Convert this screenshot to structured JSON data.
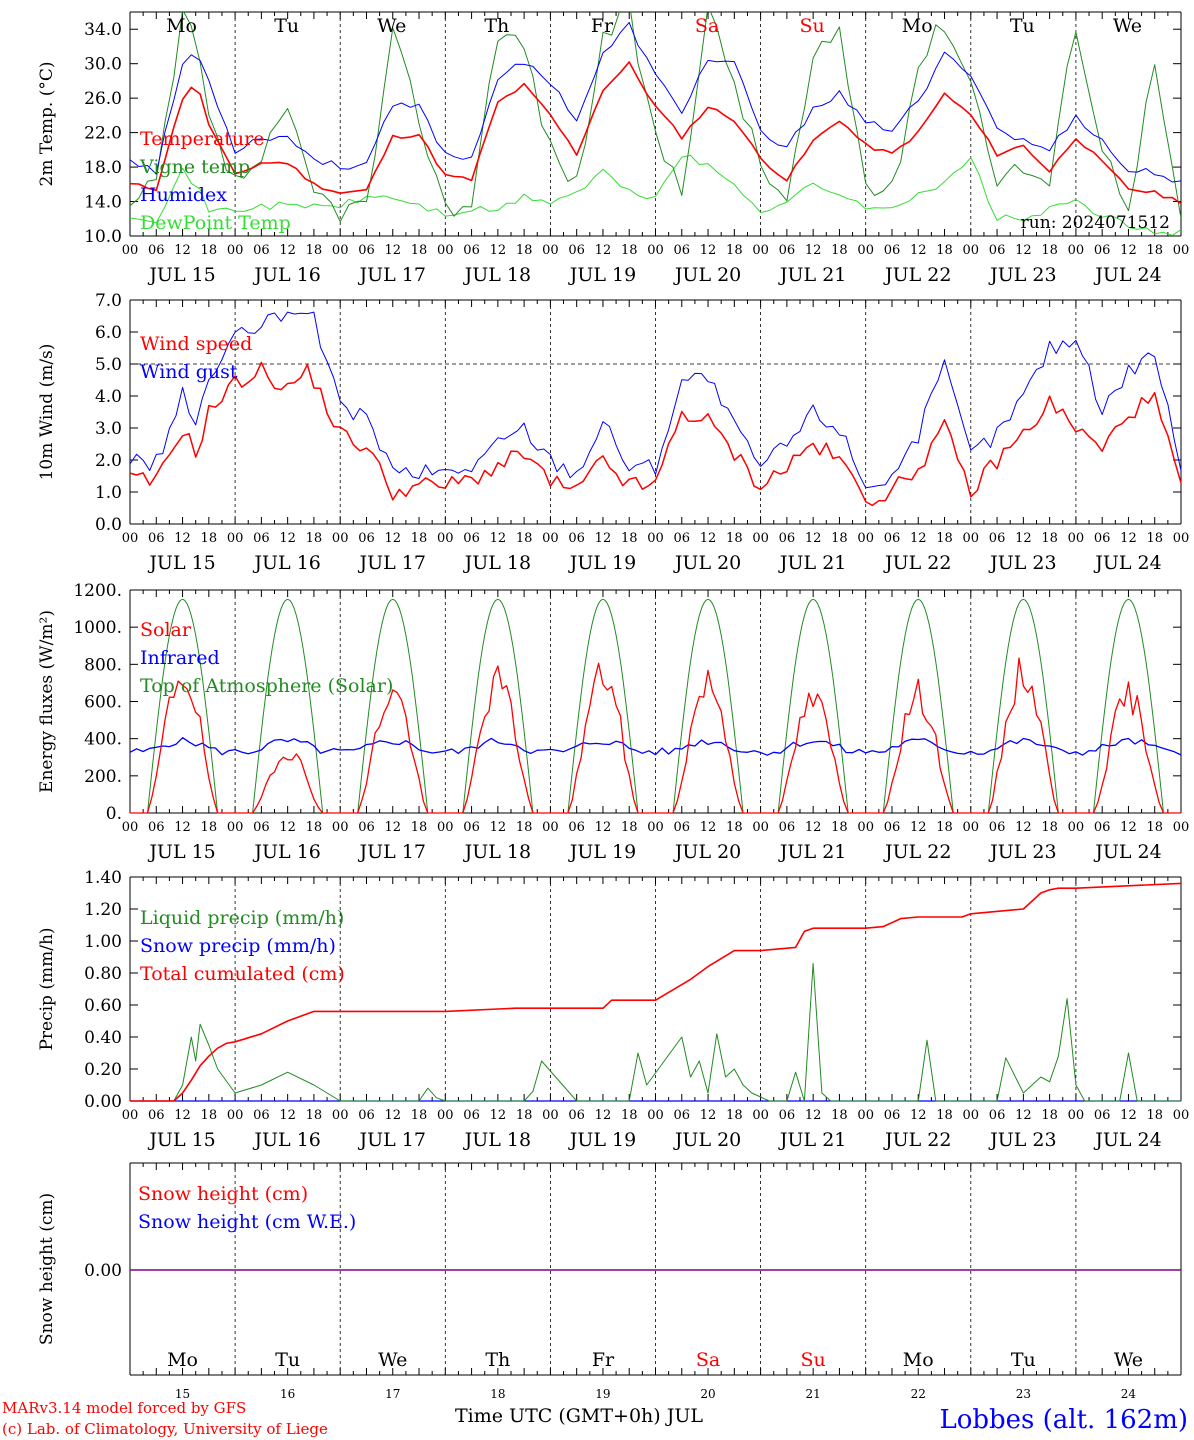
{
  "footer": {
    "model_line": "MARv3.14 model forced by GFS",
    "credit_line": "(c) Lab. of Climatology, University of Liege",
    "xaxis_title": "Time UTC (GMT+0h) JUL",
    "station": "Lobbes (alt. 162m)",
    "run_label": "run: 2024071512"
  },
  "days": {
    "dates": [
      "JUL 15",
      "JUL 16",
      "JUL 17",
      "JUL 18",
      "JUL 19",
      "JUL 20",
      "JUL 21",
      "JUL 22",
      "JUL 23",
      "JUL 24"
    ],
    "day_numbers": [
      "15",
      "16",
      "17",
      "18",
      "19",
      "20",
      "21",
      "22",
      "23",
      "24"
    ],
    "weekdays": [
      "Mo",
      "Tu",
      "We",
      "Th",
      "Fr",
      "Sa",
      "Su",
      "Mo",
      "Tu",
      "We"
    ],
    "weekend_flags": [
      false,
      false,
      false,
      false,
      false,
      true,
      true,
      false,
      false,
      false
    ],
    "hour_ticks": [
      "00",
      "06",
      "12",
      "18"
    ],
    "final_tick": "00"
  },
  "colors": {
    "red": "#ff0000",
    "green": "#228b22",
    "blue": "#0000ff",
    "lime": "#33dd33",
    "purple": "#800080",
    "weekday": "#000000",
    "weekend": "#ff0000",
    "station": "#0000ff"
  },
  "chart_data": [
    {
      "type": "line",
      "ylabel": "2m Temp. (°C)",
      "ylim": [
        10,
        36
      ],
      "yticks": [
        "10.0",
        "14.0",
        "18.0",
        "22.0",
        "26.0",
        "30.0",
        "34.0"
      ],
      "x_unit": "hours since JUL 15 00 UTC",
      "grid": "vertical dashed lines at day boundaries",
      "legend": "upper-left",
      "series": [
        {
          "name": "Temperature",
          "color": "red",
          "x": [
            0,
            6,
            12,
            15,
            18,
            24,
            30,
            36,
            42,
            48,
            54,
            60,
            66,
            72,
            78,
            84,
            90,
            96,
            102,
            108,
            114,
            120,
            126,
            132,
            138,
            144,
            150,
            156,
            162,
            168,
            174,
            180,
            186,
            192,
            198,
            204,
            210,
            216,
            222,
            228,
            234,
            240
          ],
          "values": [
            16,
            15.5,
            26,
            28,
            23,
            17,
            18.5,
            18.5,
            16,
            15,
            15.3,
            21.5,
            21.8,
            17,
            16.5,
            25.5,
            27.5,
            24,
            19.5,
            27,
            30,
            25,
            21.5,
            25,
            23.5,
            19,
            16.5,
            21,
            23.5,
            20.5,
            19.5,
            22,
            26.5,
            24,
            19.5,
            20.5,
            17.5,
            21.5,
            18.5,
            15.5,
            15,
            14
          ]
        },
        {
          "name": "Vigne temp",
          "color": "green",
          "x": [
            0,
            6,
            12,
            15,
            18,
            24,
            30,
            36,
            42,
            48,
            54,
            60,
            66,
            72,
            78,
            84,
            90,
            96,
            102,
            108,
            114,
            120,
            126,
            132,
            138,
            144,
            150,
            156,
            162,
            168,
            174,
            180,
            186,
            192,
            198,
            204,
            210,
            216,
            222,
            228,
            234,
            240
          ],
          "values": [
            13,
            16,
            35,
            33,
            23,
            16,
            19,
            24,
            15,
            13,
            13.5,
            33,
            24,
            13,
            14,
            34,
            32,
            20,
            16,
            33,
            36,
            21,
            16,
            36,
            28,
            18,
            14,
            30,
            34,
            16,
            15,
            30,
            35,
            28,
            17,
            18,
            16,
            35,
            20,
            14,
            30,
            11
          ]
        },
        {
          "name": "Humidex",
          "color": "blue",
          "x": [
            0,
            6,
            12,
            15,
            18,
            24,
            30,
            36,
            42,
            48,
            54,
            60,
            66,
            72,
            78,
            84,
            90,
            96,
            102,
            108,
            114,
            120,
            126,
            132,
            138,
            144,
            150,
            156,
            162,
            168,
            174,
            180,
            186,
            192,
            198,
            204,
            210,
            216,
            222,
            228,
            234,
            240
          ],
          "values": [
            19,
            17.5,
            30,
            31.5,
            28,
            20,
            21.5,
            21.5,
            19,
            18,
            18.5,
            25,
            25,
            19.5,
            19,
            28.5,
            30,
            28,
            23.5,
            31,
            34.5,
            28.5,
            24.5,
            30.5,
            30,
            22,
            20,
            25,
            26.5,
            23,
            22.5,
            25.5,
            31,
            29,
            22.5,
            21,
            20,
            24,
            21,
            17.5,
            17.5,
            16
          ]
        },
        {
          "name": "DewPoint Temp",
          "color": "lime",
          "x": [
            0,
            6,
            12,
            15,
            18,
            24,
            30,
            36,
            42,
            48,
            54,
            60,
            66,
            72,
            78,
            84,
            90,
            96,
            102,
            108,
            114,
            120,
            126,
            132,
            138,
            144,
            150,
            156,
            162,
            168,
            174,
            180,
            186,
            192,
            198,
            204,
            210,
            216,
            222,
            228,
            234,
            240
          ],
          "values": [
            12.5,
            12,
            17.5,
            16,
            13,
            13,
            13.5,
            13.5,
            13.5,
            13.5,
            14.5,
            14.5,
            13.5,
            12.5,
            13,
            13,
            14.5,
            14,
            15,
            17.5,
            15,
            14.5,
            19.5,
            18,
            16,
            13,
            14,
            16,
            15,
            13,
            13.5,
            15,
            16,
            19,
            12,
            12,
            13,
            14,
            12.5,
            11,
            10.5,
            10.5
          ]
        }
      ]
    },
    {
      "type": "line",
      "ylabel": "10m Wind (m/s)",
      "ylim": [
        0,
        7
      ],
      "yticks": [
        "0.0",
        "1.0",
        "2.0",
        "3.0",
        "4.0",
        "5.0",
        "6.0",
        "7.0"
      ],
      "x_unit": "hours since JUL 15 00 UTC",
      "reference_line": 5,
      "legend": "upper-left",
      "series": [
        {
          "name": "Wind speed",
          "color": "red",
          "x": [
            0,
            6,
            12,
            15,
            18,
            24,
            30,
            36,
            40,
            42,
            48,
            54,
            60,
            66,
            72,
            78,
            84,
            90,
            96,
            102,
            108,
            114,
            120,
            126,
            132,
            138,
            144,
            150,
            156,
            162,
            168,
            174,
            180,
            186,
            192,
            198,
            204,
            210,
            216,
            222,
            228,
            234,
            240
          ],
          "values": [
            1.4,
            1.3,
            3.0,
            2.2,
            3.5,
            4.4,
            4.8,
            4.2,
            4.8,
            4.5,
            2.8,
            2.4,
            1.0,
            1.2,
            1.2,
            1.4,
            1.8,
            2.2,
            1.3,
            1.0,
            2.0,
            1.2,
            1.2,
            3.5,
            3.2,
            2.2,
            1.2,
            1.8,
            2.5,
            2.0,
            0.8,
            1.0,
            1.8,
            3.0,
            1.0,
            2.0,
            2.8,
            3.8,
            3.0,
            2.3,
            3.5,
            3.9,
            1.2
          ]
        },
        {
          "name": "Wind gust",
          "color": "blue",
          "x": [
            0,
            6,
            12,
            15,
            18,
            24,
            30,
            36,
            40,
            42,
            48,
            54,
            60,
            66,
            72,
            78,
            84,
            90,
            96,
            102,
            108,
            114,
            120,
            126,
            132,
            138,
            144,
            150,
            156,
            162,
            168,
            174,
            180,
            186,
            192,
            198,
            204,
            210,
            216,
            222,
            228,
            234,
            240
          ],
          "values": [
            2.0,
            1.9,
            4.0,
            3.2,
            4.5,
            5.8,
            6.2,
            6.5,
            6.9,
            6.4,
            3.6,
            3.4,
            1.6,
            1.6,
            1.6,
            1.8,
            2.5,
            3.0,
            2.0,
            1.6,
            3.2,
            1.8,
            1.8,
            4.5,
            4.6,
            3.0,
            1.8,
            2.5,
            3.5,
            3.0,
            1.2,
            1.5,
            2.8,
            4.9,
            2.2,
            2.8,
            4.0,
            5.5,
            5.8,
            3.6,
            4.8,
            5.4,
            1.8
          ]
        }
      ]
    },
    {
      "type": "line",
      "ylabel": "Energy fluxes (W/m²)",
      "ylim": [
        0,
        1200
      ],
      "yticks": [
        "0.",
        "200.",
        "400.",
        "600.",
        "800.",
        "1000.",
        "1200."
      ],
      "x_unit": "hours since JUL 15 00 UTC",
      "legend": "upper-left",
      "series": [
        {
          "name": "Solar",
          "color": "red",
          "peaks": [
            850,
            380,
            740,
            800,
            850,
            800,
            690,
            720,
            860,
            710
          ]
        },
        {
          "name": "Infrared",
          "color": "blue",
          "baseline": 330,
          "day_max": 400
        },
        {
          "name": "Top of Atmosphere (Solar)",
          "color": "green",
          "peak": 1150
        }
      ]
    },
    {
      "type": "line",
      "ylabel": "Precip (mm/h)",
      "ylim": [
        0,
        1.4
      ],
      "yticks": [
        "0.00",
        "0.20",
        "0.40",
        "0.60",
        "0.80",
        "1.00",
        "1.20",
        "1.40"
      ],
      "x_unit": "hours since JUL 15 00 UTC",
      "legend": "upper-left",
      "series": [
        {
          "name": "Liquid precip (mm/h)",
          "color": "green",
          "x": [
            0,
            10,
            12,
            14,
            15,
            16,
            18,
            20,
            24,
            30,
            36,
            42,
            45,
            48,
            66,
            68,
            70,
            72,
            84,
            90,
            92,
            94,
            102,
            114,
            116,
            118,
            126,
            128,
            130,
            132,
            134,
            136,
            138,
            140,
            142,
            146,
            150,
            152,
            154,
            156,
            158,
            160,
            174,
            180,
            182,
            184,
            198,
            200,
            204,
            206,
            208,
            210,
            212,
            214,
            216,
            218,
            226,
            228,
            230,
            240
          ],
          "values": [
            0,
            0,
            0.1,
            0.4,
            0.25,
            0.48,
            0.35,
            0.2,
            0.05,
            0.1,
            0.18,
            0.1,
            0.05,
            0,
            0,
            0.08,
            0.02,
            0,
            0,
            0,
            0.06,
            0.25,
            0,
            0,
            0.3,
            0.1,
            0.4,
            0.15,
            0.25,
            0.05,
            0.42,
            0.15,
            0.2,
            0.1,
            0.05,
            0,
            0,
            0.18,
            0,
            0.86,
            0.05,
            0,
            0,
            0,
            0.38,
            0,
            0,
            0.27,
            0.05,
            0.1,
            0.15,
            0.12,
            0.28,
            0.64,
            0.1,
            0,
            0,
            0.3,
            0,
            0
          ]
        },
        {
          "name": "Snow precip (mm/h)",
          "color": "blue",
          "values": [
            0,
            0
          ]
        },
        {
          "name": "Total cumulated (cm)",
          "color": "red",
          "x": [
            0,
            10,
            12,
            14,
            16,
            18,
            20,
            22,
            24,
            30,
            36,
            42,
            48,
            72,
            88,
            96,
            108,
            110,
            120,
            128,
            132,
            138,
            144,
            152,
            154,
            156,
            168,
            172,
            176,
            180,
            190,
            192,
            204,
            208,
            210,
            212,
            216,
            240
          ],
          "values": [
            0,
            0,
            0.05,
            0.13,
            0.22,
            0.28,
            0.33,
            0.36,
            0.37,
            0.42,
            0.5,
            0.56,
            0.56,
            0.56,
            0.58,
            0.58,
            0.58,
            0.63,
            0.63,
            0.76,
            0.84,
            0.94,
            0.94,
            0.96,
            1.06,
            1.08,
            1.08,
            1.09,
            1.14,
            1.15,
            1.15,
            1.17,
            1.2,
            1.3,
            1.32,
            1.33,
            1.33,
            1.36
          ]
        }
      ]
    },
    {
      "type": "line",
      "ylabel": "Snow height (cm)",
      "yticks": [
        "0.00"
      ],
      "x_unit": "hours since JUL 15 00 UTC",
      "legend": "upper-left",
      "series": [
        {
          "name": "Snow height (cm)",
          "color": "red",
          "x": [
            0,
            240
          ],
          "values": [
            0,
            0
          ]
        },
        {
          "name": "Snow height (cm W.E.)",
          "color": "blue",
          "x": [
            0,
            240
          ],
          "values": [
            0,
            0
          ]
        }
      ]
    }
  ]
}
